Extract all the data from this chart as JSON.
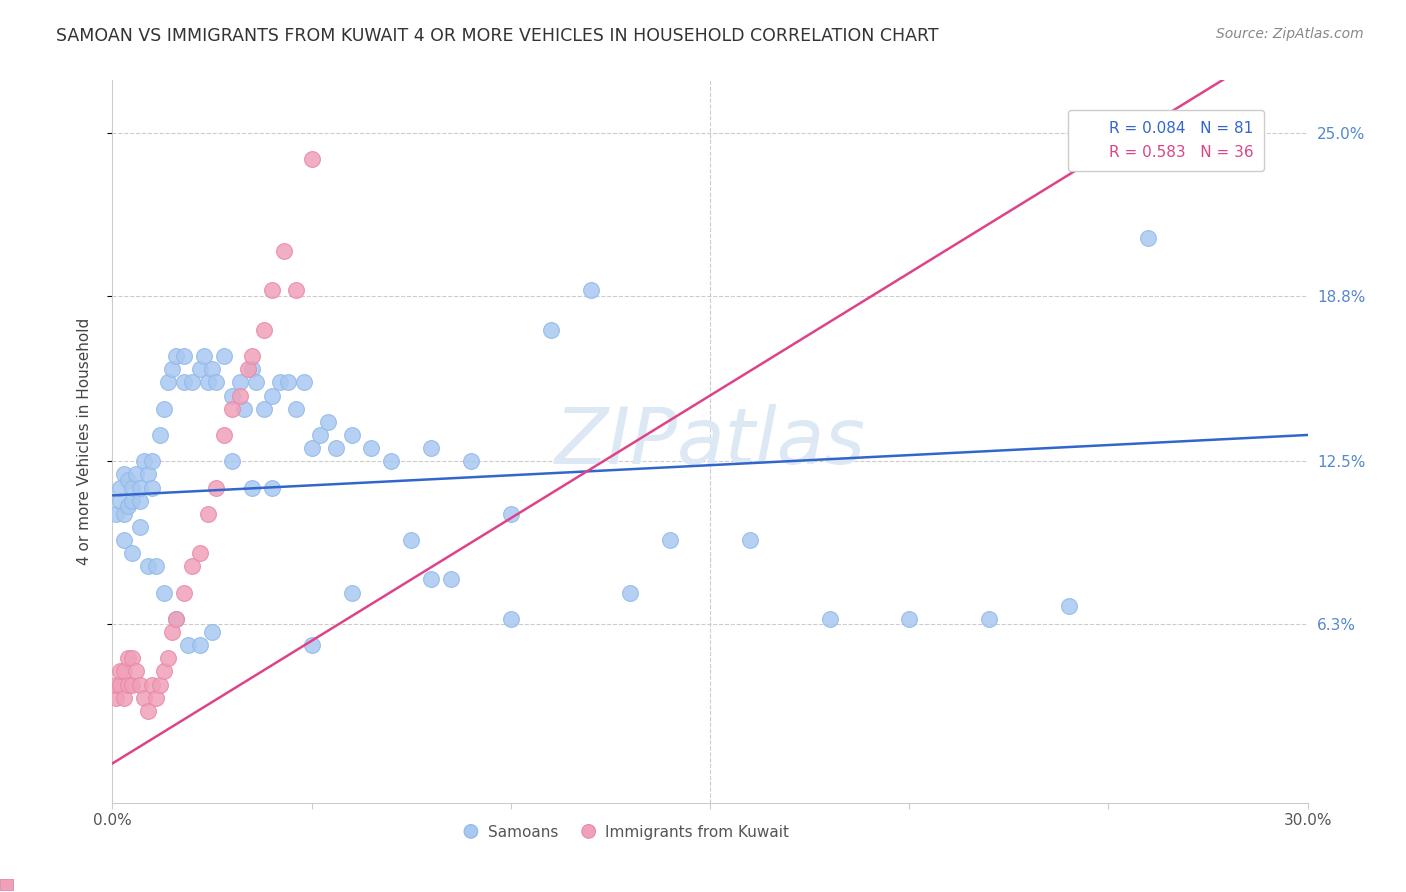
{
  "title": "SAMOAN VS IMMIGRANTS FROM KUWAIT 4 OR MORE VEHICLES IN HOUSEHOLD CORRELATION CHART",
  "source": "Source: ZipAtlas.com",
  "ylabel": "4 or more Vehicles in Household",
  "xlim": [
    0.0,
    0.3
  ],
  "ylim": [
    -0.005,
    0.27
  ],
  "y_ticks": [
    0.063,
    0.125,
    0.188,
    0.25
  ],
  "y_tick_labels": [
    "6.3%",
    "12.5%",
    "18.8%",
    "25.0%"
  ],
  "x_ticks": [
    0.0,
    0.05,
    0.1,
    0.15,
    0.2,
    0.25,
    0.3
  ],
  "x_tick_labels": [
    "0.0%",
    "",
    "",
    "",
    "",
    "",
    "30.0%"
  ],
  "legend_samoans": "Samoans",
  "legend_kuwait": "Immigrants from Kuwait",
  "blue_color": "#a8c8f0",
  "pink_color": "#f0a0b8",
  "blue_edge_color": "#90b8e8",
  "pink_edge_color": "#e888a8",
  "blue_line_color": "#3366cc",
  "pink_line_color": "#dd4488",
  "watermark": "ZIPatlas",
  "watermark_color": "#dde8f5",
  "blue_scatter_x": [
    0.001,
    0.002,
    0.002,
    0.003,
    0.003,
    0.004,
    0.004,
    0.005,
    0.005,
    0.006,
    0.007,
    0.007,
    0.008,
    0.009,
    0.01,
    0.01,
    0.012,
    0.013,
    0.014,
    0.015,
    0.016,
    0.018,
    0.018,
    0.02,
    0.022,
    0.023,
    0.024,
    0.025,
    0.026,
    0.028,
    0.03,
    0.032,
    0.033,
    0.035,
    0.036,
    0.038,
    0.04,
    0.042,
    0.044,
    0.046,
    0.048,
    0.05,
    0.052,
    0.054,
    0.056,
    0.06,
    0.065,
    0.07,
    0.075,
    0.08,
    0.085,
    0.09,
    0.1,
    0.11,
    0.12,
    0.13,
    0.14,
    0.16,
    0.18,
    0.2,
    0.22,
    0.24,
    0.26,
    0.003,
    0.005,
    0.007,
    0.009,
    0.011,
    0.013,
    0.016,
    0.019,
    0.022,
    0.025,
    0.03,
    0.035,
    0.04,
    0.05,
    0.06,
    0.08,
    0.1
  ],
  "blue_scatter_y": [
    0.105,
    0.11,
    0.115,
    0.105,
    0.12,
    0.108,
    0.118,
    0.11,
    0.115,
    0.12,
    0.11,
    0.115,
    0.125,
    0.12,
    0.115,
    0.125,
    0.135,
    0.145,
    0.155,
    0.16,
    0.165,
    0.155,
    0.165,
    0.155,
    0.16,
    0.165,
    0.155,
    0.16,
    0.155,
    0.165,
    0.15,
    0.155,
    0.145,
    0.16,
    0.155,
    0.145,
    0.15,
    0.155,
    0.155,
    0.145,
    0.155,
    0.13,
    0.135,
    0.14,
    0.13,
    0.135,
    0.13,
    0.125,
    0.095,
    0.13,
    0.08,
    0.125,
    0.105,
    0.175,
    0.19,
    0.075,
    0.095,
    0.095,
    0.065,
    0.065,
    0.065,
    0.07,
    0.21,
    0.095,
    0.09,
    0.1,
    0.085,
    0.085,
    0.075,
    0.065,
    0.055,
    0.055,
    0.06,
    0.125,
    0.115,
    0.115,
    0.055,
    0.075,
    0.08,
    0.065
  ],
  "pink_scatter_x": [
    0.001,
    0.001,
    0.002,
    0.002,
    0.003,
    0.003,
    0.004,
    0.004,
    0.005,
    0.005,
    0.006,
    0.007,
    0.008,
    0.009,
    0.01,
    0.011,
    0.012,
    0.013,
    0.014,
    0.015,
    0.016,
    0.018,
    0.02,
    0.022,
    0.024,
    0.026,
    0.028,
    0.03,
    0.032,
    0.034,
    0.035,
    0.038,
    0.04,
    0.043,
    0.046,
    0.05
  ],
  "pink_scatter_y": [
    0.035,
    0.04,
    0.04,
    0.045,
    0.035,
    0.045,
    0.04,
    0.05,
    0.04,
    0.05,
    0.045,
    0.04,
    0.035,
    0.03,
    0.04,
    0.035,
    0.04,
    0.045,
    0.05,
    0.06,
    0.065,
    0.075,
    0.085,
    0.09,
    0.105,
    0.115,
    0.135,
    0.145,
    0.15,
    0.16,
    0.165,
    0.175,
    0.19,
    0.205,
    0.19,
    0.24
  ],
  "blue_trend_start_y": 0.112,
  "blue_trend_end_y": 0.135,
  "pink_trend_start_y": 0.01,
  "pink_trend_end_y": 0.29
}
